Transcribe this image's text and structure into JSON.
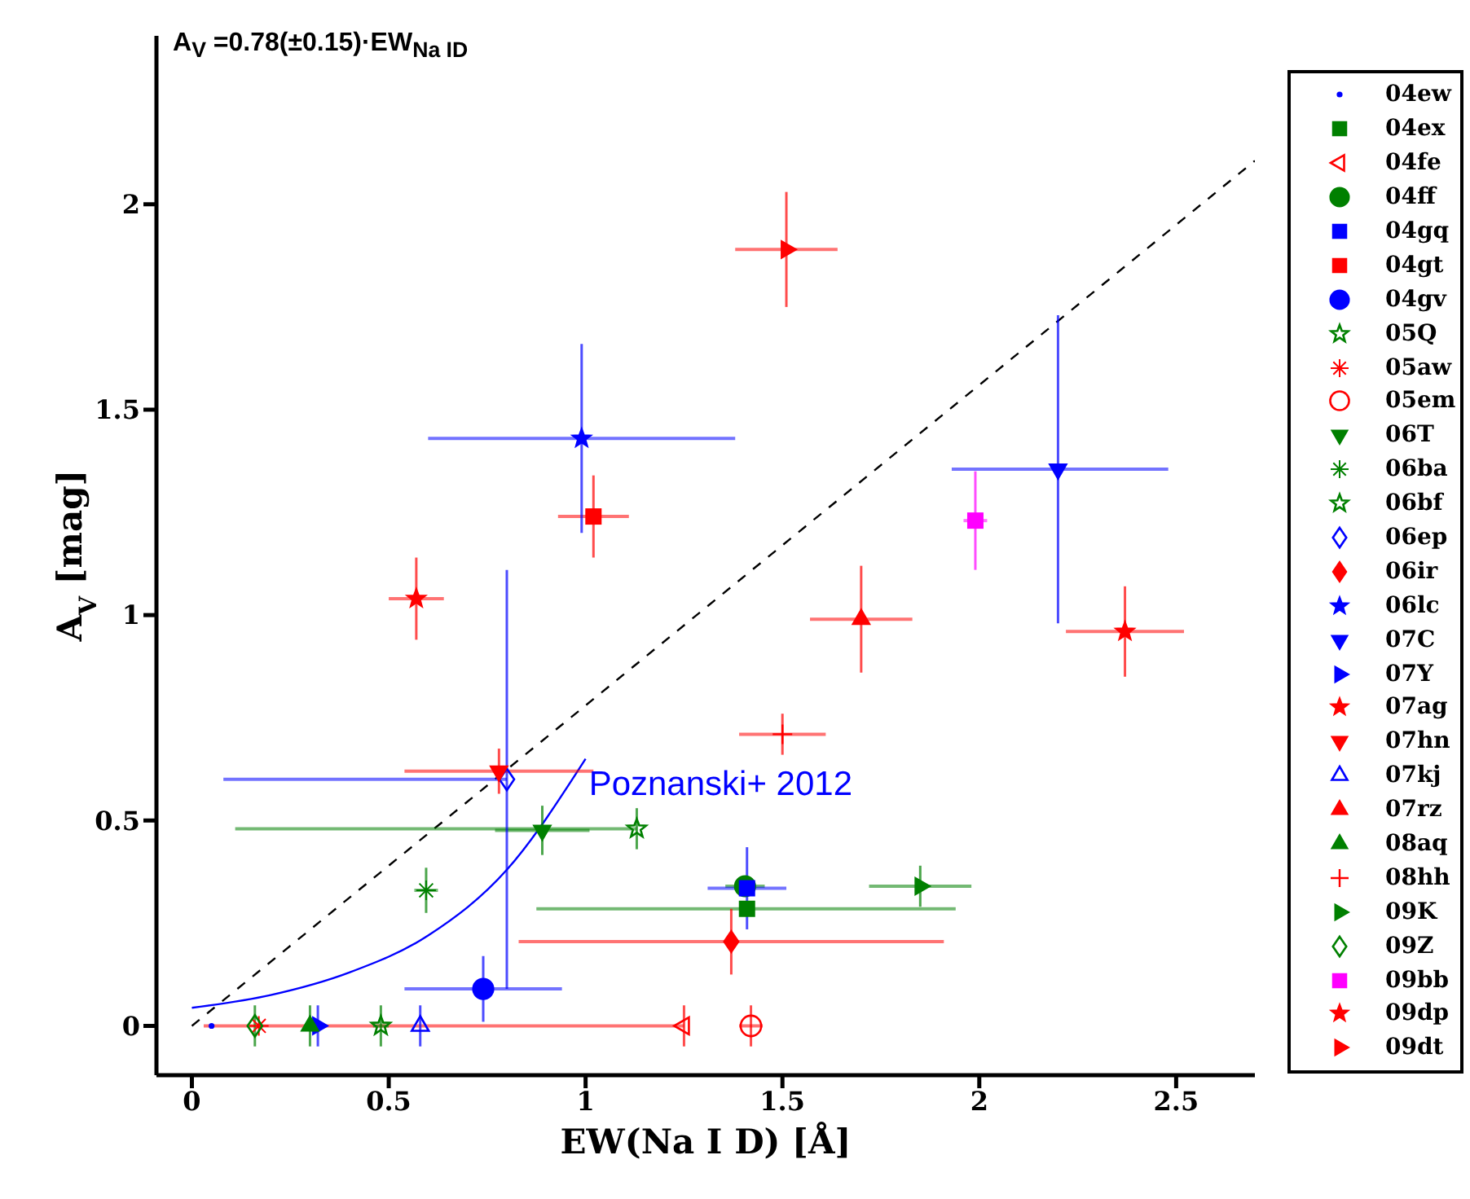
{
  "chart_data": {
    "type": "scatter",
    "annotations": [
      "A$_{V}$ =0.78(±0.15)·EW$_{Na ID}$"
    ],
    "xlabel": "EW(Na I D) [Å]",
    "ylabel": "A$_{V}$ [mag]",
    "xlim": [
      -0.09,
      2.7
    ],
    "xticks": [
      0,
      0.5,
      1,
      1.5,
      2,
      2.5
    ],
    "ylim": [
      -0.12,
      2.41
    ],
    "yticks": [
      0,
      0.5,
      1,
      1.5,
      2
    ],
    "grid": false,
    "legend": "right",
    "series": [
      {
        "type": "line",
        "color": "#000000",
        "line_style": "dashed",
        "marker": "none",
        "x": [
          0,
          2.7
        ],
        "values": [
          0,
          2.106
        ]
      },
      {
        "type": "line",
        "name": "Poznanski+ 2012",
        "color": "#0000ff",
        "line_style": "solid",
        "marker": "none",
        "x": [
          0,
          0.2,
          0.4,
          0.6,
          0.8,
          1.0
        ],
        "values": [
          0.044,
          0.075,
          0.13,
          0.22,
          0.38,
          0.65
        ]
      },
      {
        "name": "04ew",
        "color": "#0000ff",
        "marker": "dot",
        "x": [
          0.05
        ],
        "values": [
          0
        ],
        "errors": [
          null
        ],
        "xerrors": [
          null
        ]
      },
      {
        "name": "04ex",
        "color": "#008000",
        "marker": "square",
        "x": [
          1.41
        ],
        "values": [
          0.285
        ],
        "errors": [
          null
        ],
        "xerrors": [
          [
            0.875,
            1.94
          ]
        ]
      },
      {
        "name": "04fe",
        "color": "#ff0000",
        "marker": "triangle-left-open",
        "x": [
          1.25
        ],
        "values": [
          0
        ],
        "errors": [
          0.05
        ],
        "xerrors": [
          [
            0.03,
            1.25
          ]
        ]
      },
      {
        "name": "04ff",
        "color": "#008000",
        "marker": "circle",
        "x": [
          1.405
        ],
        "values": [
          0.34
        ],
        "errors": [
          null
        ],
        "xerrors": [
          0.05
        ]
      },
      {
        "name": "04gq",
        "color": "#0000ff",
        "marker": "square",
        "x": [
          1.41
        ],
        "values": [
          0.335
        ],
        "errors": [
          0.1
        ],
        "xerrors": [
          0.1
        ]
      },
      {
        "name": "04gt",
        "color": "#ff0000",
        "marker": "square",
        "x": [
          1.02
        ],
        "values": [
          1.24
        ],
        "errors": [
          0.1
        ],
        "xerrors": [
          0.09
        ]
      },
      {
        "name": "04gv",
        "color": "#0000ff",
        "marker": "circle",
        "x": [
          0.74
        ],
        "values": [
          0.09
        ],
        "errors": [
          0.08
        ],
        "xerrors": [
          0.2
        ]
      },
      {
        "name": "05Q",
        "color": "#008000",
        "marker": "star-open",
        "x": [
          0.48
        ],
        "values": [
          0
        ],
        "errors": [
          0.05
        ],
        "xerrors": [
          0.02
        ]
      },
      {
        "name": "05aw",
        "color": "#ff0000",
        "marker": "cross",
        "x": [
          0.17
        ],
        "values": [
          0
        ],
        "errors": [
          null
        ],
        "xerrors": [
          null
        ]
      },
      {
        "name": "05em",
        "color": "#ff0000",
        "marker": "circle-open",
        "x": [
          1.42
        ],
        "values": [
          0
        ],
        "errors": [
          0.05
        ],
        "xerrors": [
          0.03
        ]
      },
      {
        "name": "06T",
        "color": "#008000",
        "marker": "triangle-down",
        "x": [
          0.89
        ],
        "values": [
          0.476
        ],
        "errors": [
          0.06
        ],
        "xerrors": [
          0.12
        ]
      },
      {
        "name": "06ba",
        "color": "#008000",
        "marker": "cross",
        "x": [
          0.595
        ],
        "values": [
          0.33
        ],
        "errors": [
          0.055
        ],
        "xerrors": [
          0.03
        ]
      },
      {
        "name": "06bf",
        "color": "#008000",
        "marker": "star-open",
        "x": [
          1.13
        ],
        "values": [
          0.48
        ],
        "errors": [
          0.05
        ],
        "xerrors": [
          [
            0.11,
            1.13
          ]
        ]
      },
      {
        "name": "06ep",
        "color": "#0000ff",
        "marker": "diamond-open",
        "x": [
          0.8
        ],
        "values": [
          0.6
        ],
        "errors": [
          [
            0.09,
            1.11
          ]
        ],
        "xerrors": [
          [
            0.08,
            0.8
          ]
        ]
      },
      {
        "name": "06ir",
        "color": "#ff0000",
        "marker": "diamond",
        "x": [
          1.37
        ],
        "values": [
          0.205
        ],
        "errors": [
          0.08
        ],
        "xerrors": [
          [
            0.83,
            1.91
          ]
        ]
      },
      {
        "name": "06lc",
        "color": "#0000ff",
        "marker": "star",
        "x": [
          0.99
        ],
        "values": [
          1.43
        ],
        "errors": [
          0.23
        ],
        "xerrors": [
          0.39
        ]
      },
      {
        "name": "07C",
        "color": "#0000ff",
        "marker": "triangle-down",
        "x": [
          2.2
        ],
        "values": [
          1.355
        ],
        "errors": [
          [
            0.98,
            1.73
          ]
        ],
        "xerrors": [
          [
            1.93,
            2.48
          ]
        ]
      },
      {
        "name": "07Y",
        "color": "#0000ff",
        "marker": "triangle-right",
        "x": [
          0.32
        ],
        "values": [
          0
        ],
        "errors": [
          0.05
        ],
        "xerrors": [
          null
        ]
      },
      {
        "name": "07ag",
        "color": "#ff0000",
        "marker": "star",
        "x": [
          0.57
        ],
        "values": [
          1.04
        ],
        "errors": [
          0.1
        ],
        "xerrors": [
          0.07
        ]
      },
      {
        "name": "07hn",
        "color": "#ff0000",
        "marker": "triangle-down",
        "x": [
          0.78
        ],
        "values": [
          0.62
        ],
        "errors": [
          0.055
        ],
        "xerrors": [
          0.24
        ]
      },
      {
        "name": "07kj",
        "color": "#0000ff",
        "marker": "triangle-open",
        "x": [
          0.58
        ],
        "values": [
          0
        ],
        "errors": [
          0.05
        ],
        "xerrors": [
          null
        ]
      },
      {
        "name": "07rz",
        "color": "#ff0000",
        "marker": "triangle",
        "x": [
          1.7
        ],
        "values": [
          0.99
        ],
        "errors": [
          0.13
        ],
        "xerrors": [
          0.13
        ]
      },
      {
        "name": "08aq",
        "color": "#008000",
        "marker": "triangle",
        "x": [
          0.3
        ],
        "values": [
          0
        ],
        "errors": [
          0.05
        ],
        "xerrors": [
          null
        ]
      },
      {
        "name": "08hh",
        "color": "#ff0000",
        "marker": "plus",
        "x": [
          1.5
        ],
        "values": [
          0.71
        ],
        "errors": [
          0.05
        ],
        "xerrors": [
          0.11
        ]
      },
      {
        "name": "09K",
        "color": "#008000",
        "marker": "triangle-right",
        "x": [
          1.85
        ],
        "values": [
          0.34
        ],
        "errors": [
          0.05
        ],
        "xerrors": [
          0.13
        ]
      },
      {
        "name": "09Z",
        "color": "#008000",
        "marker": "diamond-open",
        "x": [
          0.16
        ],
        "values": [
          0
        ],
        "errors": [
          0.05
        ],
        "xerrors": [
          null
        ]
      },
      {
        "name": "09bb",
        "color": "#ff00ff",
        "marker": "square",
        "x": [
          1.99
        ],
        "values": [
          1.23
        ],
        "errors": [
          0.12
        ],
        "xerrors": [
          0.03
        ]
      },
      {
        "name": "09dp",
        "color": "#ff0000",
        "marker": "star",
        "x": [
          2.37
        ],
        "values": [
          0.96
        ],
        "errors": [
          0.11
        ],
        "xerrors": [
          0.15
        ]
      },
      {
        "name": "09dt",
        "color": "#ff0000",
        "marker": "triangle-right",
        "x": [
          1.51
        ],
        "values": [
          1.89
        ],
        "errors": [
          0.14
        ],
        "xerrors": [
          0.13
        ]
      }
    ]
  }
}
